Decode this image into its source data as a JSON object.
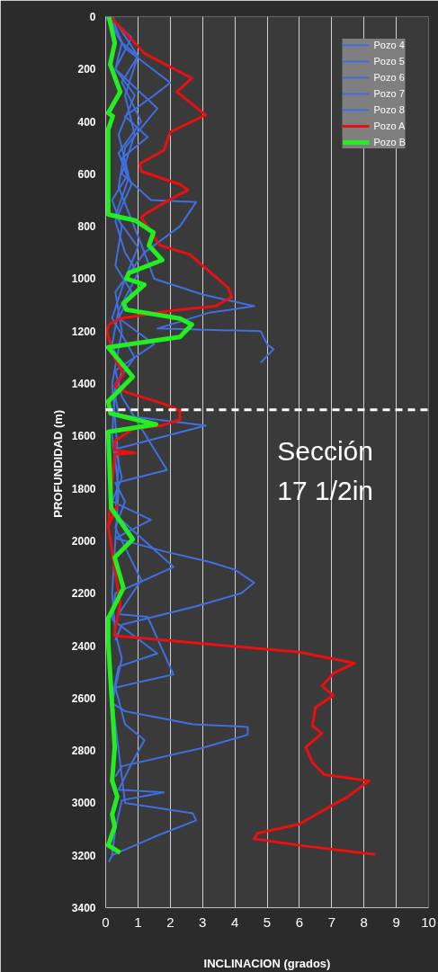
{
  "chart_data": {
    "type": "line",
    "xlabel": "INCLINACION (grados)",
    "ylabel": "PROFUNDIDAD  (m)",
    "xlim": [
      0,
      10
    ],
    "xticks": [
      0,
      1,
      2,
      3,
      4,
      5,
      6,
      7,
      8,
      9,
      10
    ],
    "ylim": [
      3400,
      0
    ],
    "yticks": [
      0,
      200,
      400,
      600,
      800,
      1000,
      1200,
      1400,
      1600,
      1800,
      2000,
      2200,
      2400,
      2600,
      2800,
      3000,
      3200,
      3400
    ],
    "grid": "x",
    "legend": "top right",
    "ref_lines": [
      {
        "axis": "y",
        "value": 1500,
        "label": "Sección 17 1/2in",
        "color": "#ffffff",
        "line_style": "dashed"
      }
    ],
    "series": [
      {
        "name": "Pozo 4",
        "color": "#3f6fe0",
        "x": [
          0.0,
          0.5,
          1.0,
          0.6,
          0.9,
          0.5,
          1.4,
          2.8,
          2.3,
          1.2,
          1.5,
          3.0,
          4.6,
          3.2,
          1.6,
          4.8,
          5.0,
          5.2,
          4.8
        ],
        "values": [
          0,
          100,
          150,
          300,
          450,
          600,
          700,
          708,
          800,
          900,
          1000,
          1060,
          1105,
          1130,
          1190,
          1200,
          1250,
          1269,
          1321
        ]
      },
      {
        "name": "Pozo 5",
        "color": "#3f6fe0",
        "x": [
          0.1,
          0.6,
          2.0,
          1.5,
          0.6,
          1.3,
          0.5,
          0.8,
          0.3,
          0.6,
          1.0,
          0.4,
          0.2,
          0.5,
          0.3,
          0.4,
          3.1,
          0.3,
          0.5,
          0.2,
          1.4,
          0.3,
          1.8,
          3.2,
          4.0,
          4.6,
          4.2,
          2.8,
          0.5,
          0.3
        ],
        "values": [
          0,
          120,
          252,
          300,
          380,
          460,
          540,
          640,
          780,
          900,
          980,
          1120,
          1250,
          1350,
          1450,
          1520,
          1560,
          1650,
          1760,
          1850,
          1920,
          1990,
          2040,
          2080,
          2110,
          2160,
          2200,
          2250,
          2320,
          2380
        ]
      },
      {
        "name": "Pozo 6",
        "color": "#3f6fe0",
        "x": [
          0.2,
          1.0,
          0.5,
          1.1,
          0.4,
          0.7,
          0.3,
          1.0,
          0.6,
          0.2,
          0.9,
          0.3,
          0.2,
          0.4,
          0.3,
          0.2,
          0.3,
          0.5,
          0.3,
          0.2,
          0.6,
          2.7,
          4.4,
          4.4,
          3.0,
          0.5,
          0.3
        ],
        "values": [
          0,
          150,
          250,
          400,
          520,
          620,
          760,
          880,
          1000,
          1150,
          1300,
          1400,
          1600,
          1800,
          2000,
          2200,
          2350,
          2450,
          2560,
          2620,
          2650,
          2700,
          2710,
          2740,
          2790,
          2860,
          2900
        ]
      },
      {
        "name": "Pozo 7",
        "color": "#3f6fe0",
        "x": [
          0.1,
          0.8,
          0.3,
          1.6,
          0.6,
          0.4,
          1.2,
          0.3,
          0.5,
          0.2,
          0.4,
          0.3,
          2.1,
          0.3,
          0.2,
          1.6,
          0.4,
          0.2,
          0.6,
          2.7,
          2.8,
          1.5,
          0.2,
          0.1
        ],
        "values": [
          0,
          80,
          200,
          350,
          500,
          650,
          900,
          1050,
          1200,
          1400,
          1700,
          1900,
          2100,
          2200,
          2300,
          2430,
          2480,
          2600,
          3000,
          3040,
          3067,
          3130,
          3200,
          3225
        ]
      },
      {
        "name": "Pozo 8",
        "color": "#3f6fe0",
        "x": [
          0.2,
          0.5,
          0.3,
          0.9,
          0.4,
          0.7,
          0.2,
          0.5,
          0.3,
          0.8,
          0.4,
          1.5,
          0.3,
          0.5,
          1.9,
          0.3,
          0.6,
          0.3,
          1.1,
          0.4,
          1.3,
          2.1,
          0.3,
          0.6,
          1.2,
          0.8,
          0.4,
          1.8,
          0.5,
          0.3,
          0.2
        ],
        "values": [
          0,
          100,
          200,
          300,
          450,
          600,
          700,
          800,
          950,
          1050,
          1150,
          1250,
          1350,
          1450,
          1730,
          1780,
          1850,
          1950,
          2150,
          2280,
          2290,
          2510,
          2560,
          2700,
          2760,
          2850,
          2950,
          2960,
          2990,
          3100,
          3200
        ]
      },
      {
        "name": "Pozo A",
        "color": "#e81010",
        "x": [
          0.14,
          1.2,
          2.67,
          2.2,
          3.1,
          2.0,
          1.8,
          1.05,
          1.1,
          2.3,
          2.55,
          2.0,
          1.2,
          1.1,
          1.56,
          1.67,
          2.6,
          3.8,
          3.9,
          3.4,
          2.0,
          0.45,
          0.1,
          0.03,
          0.28,
          0.55,
          0.28,
          0.64,
          1.84,
          2.3,
          2.3,
          1.75,
          0.84,
          0.28,
          0.28,
          0.92,
          0.28,
          0.08,
          0.36,
          0.08,
          0.45,
          0.28,
          0.28,
          6.0,
          7.7,
          7.05,
          6.7,
          7.05,
          6.5,
          6.4,
          6.7,
          6.2,
          6.4,
          6.77,
          8.16,
          7.5,
          6.85,
          6.0,
          4.7,
          4.6,
          6.0,
          8.35
        ],
        "values": [
          0,
          140,
          235,
          287,
          375,
          440,
          510,
          562,
          590,
          640,
          662,
          697,
          755,
          766,
          850,
          872,
          907,
          1035,
          1070,
          1105,
          1122,
          1152,
          1175,
          1199,
          1304,
          1363,
          1409,
          1433,
          1479,
          1503,
          1538,
          1560,
          1573,
          1620,
          1654,
          1665,
          1670,
          1946,
          1865,
          1946,
          2240,
          2345,
          2362,
          2425,
          2467,
          2506,
          2555,
          2590,
          2636,
          2706,
          2734,
          2787,
          2846,
          2892,
          2916,
          2976,
          3021,
          3081,
          3116,
          3137,
          3162,
          3197
        ]
      },
      {
        "name": "Pozo B",
        "color": "#22ee22",
        "x": [
          0.1,
          0.28,
          0.14,
          0.45,
          0.08,
          0.22,
          0.08,
          0.08,
          0.92,
          1.48,
          1.34,
          1.75,
          0.72,
          0.64,
          1.2,
          0.55,
          0.64,
          2.3,
          2.67,
          2.3,
          0.08,
          0.84,
          0.08,
          0.15,
          1.56,
          0.08,
          0.17,
          0.84,
          0.28,
          0.55,
          0.08,
          0.08,
          0.28,
          0.2,
          0.36,
          0.2,
          0.28,
          0.08,
          0.45
        ],
        "values": [
          0,
          100,
          182,
          287,
          368,
          380,
          430,
          755,
          778,
          824,
          873,
          929,
          978,
          1000,
          1023,
          1094,
          1118,
          1152,
          1175,
          1222,
          1262,
          1374,
          1468,
          1514,
          1556,
          1584,
          1876,
          1994,
          2064,
          2180,
          2296,
          2390,
          2787,
          2915,
          2976,
          3045,
          3090,
          3162,
          3190
        ]
      }
    ]
  }
}
